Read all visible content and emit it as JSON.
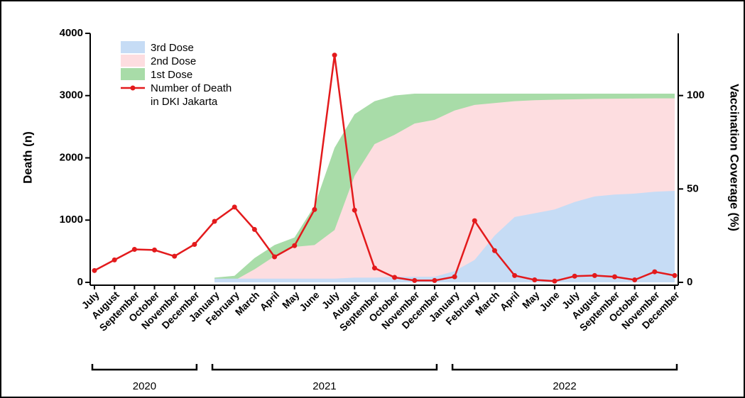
{
  "chart_data": {
    "type": "line",
    "categories": [
      "July",
      "August",
      "September",
      "October",
      "November",
      "December",
      "January",
      "February",
      "March",
      "April",
      "May",
      "June",
      "July",
      "August",
      "September",
      "October",
      "November",
      "December",
      "January",
      "February",
      "March",
      "April",
      "May",
      "June",
      "July",
      "August",
      "September",
      "October",
      "November",
      "December"
    ],
    "year_groups": [
      {
        "label": "2020",
        "start": 0,
        "end": 5
      },
      {
        "label": "2021",
        "start": 6,
        "end": 17
      },
      {
        "label": "2022",
        "start": 18,
        "end": 29
      }
    ],
    "series": [
      {
        "name": "3rd Dose",
        "type": "area",
        "axis": "y2",
        "color": "#c6dcf5",
        "values": [
          null,
          null,
          null,
          null,
          null,
          null,
          2,
          2,
          2,
          2,
          2,
          2,
          2,
          2.5,
          2.5,
          3,
          3,
          3,
          6,
          12,
          25,
          35,
          37,
          39,
          43,
          46,
          47,
          47.5,
          48.5,
          49
        ]
      },
      {
        "name": "2nd Dose",
        "type": "area",
        "axis": "y2",
        "color": "#fddde0",
        "values": [
          null,
          null,
          null,
          null,
          null,
          null,
          0.5,
          1,
          7,
          14,
          19,
          20,
          28,
          57,
          74,
          79,
          85,
          87,
          92,
          95,
          96,
          97,
          97.5,
          97.8,
          98,
          98.2,
          98.3,
          98.4,
          98.5,
          98.5
        ]
      },
      {
        "name": "1st Dose",
        "type": "area",
        "axis": "y2",
        "color": "#a8dca8",
        "values": [
          null,
          null,
          null,
          null,
          null,
          null,
          2.5,
          3.5,
          13,
          20,
          24,
          41,
          72,
          90,
          97,
          100,
          101,
          101,
          101,
          101,
          101,
          101,
          101,
          101,
          101,
          101,
          101,
          101,
          101,
          101
        ]
      },
      {
        "name": "Number of Death\nin DKI Jakarta",
        "type": "line",
        "color": "#e31a1c",
        "values": [
          190,
          360,
          530,
          520,
          420,
          610,
          980,
          1210,
          850,
          410,
          590,
          1170,
          3650,
          1160,
          230,
          80,
          30,
          30,
          90,
          990,
          510,
          110,
          40,
          20,
          100,
          110,
          90,
          40,
          170,
          110
        ]
      }
    ],
    "ylabel": "Death (n)",
    "y2label": "Vaccination Coverage (%)",
    "ylim": [
      0,
      4000
    ],
    "yticks": [
      0,
      1000,
      2000,
      3000,
      4000
    ],
    "y2lim": [
      0,
      133.3
    ],
    "y2ticks": [
      0,
      50,
      100
    ]
  }
}
